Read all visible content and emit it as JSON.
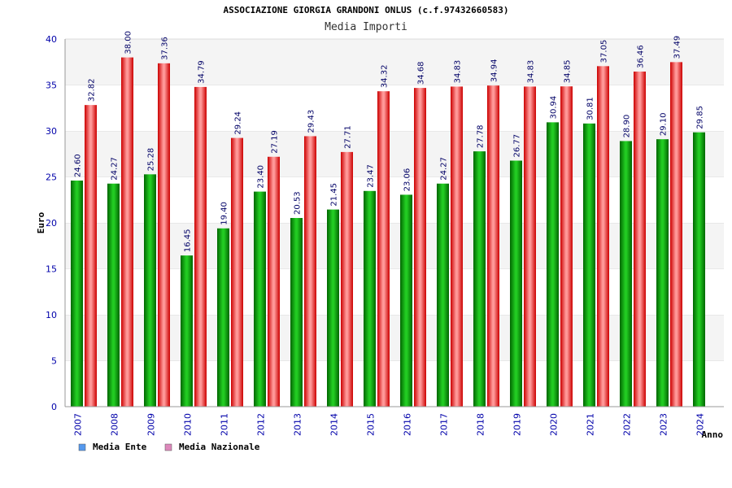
{
  "chart_data": {
    "type": "bar",
    "title": "ASSOCIAZIONE GIORGIA GRANDONI ONLUS (c.f.97432660583)",
    "subtitle": "Media Importi",
    "xlabel": "Anno",
    "ylabel": "Euro",
    "ylim": [
      0,
      40
    ],
    "yticks": [
      "0",
      "5",
      "10",
      "15",
      "20",
      "25",
      "30",
      "35",
      "40"
    ],
    "categories": [
      "2007",
      "2008",
      "2009",
      "2010",
      "2011",
      "2012",
      "2013",
      "2014",
      "2015",
      "2016",
      "2017",
      "2018",
      "2019",
      "2020",
      "2021",
      "2022",
      "2023",
      "2024"
    ],
    "series": [
      {
        "name": "Media Ente",
        "color": "#22aa22",
        "legend_color": "#5599ee",
        "values": [
          24.6,
          24.27,
          25.28,
          16.45,
          19.4,
          23.4,
          20.53,
          21.45,
          23.47,
          23.06,
          24.27,
          27.78,
          26.77,
          30.94,
          30.81,
          28.9,
          29.1,
          29.85
        ],
        "labels": [
          "24.60",
          "24.27",
          "25.28",
          "16.45",
          "19.40",
          "23.40",
          "20.53",
          "21.45",
          "23.47",
          "23.06",
          "24.27",
          "27.78",
          "26.77",
          "30.94",
          "30.81",
          "28.90",
          "29.10",
          "29.85"
        ]
      },
      {
        "name": "Media Nazionale",
        "color": "#ee2222",
        "legend_color": "#dd88bb",
        "values": [
          32.82,
          38.0,
          37.36,
          34.79,
          29.24,
          27.19,
          29.43,
          27.71,
          34.32,
          34.68,
          34.83,
          34.94,
          34.83,
          34.85,
          37.05,
          36.46,
          37.49,
          null
        ],
        "labels": [
          "32.82",
          "38.00",
          "37.36",
          "34.79",
          "29.24",
          "27.19",
          "29.43",
          "27.71",
          "34.32",
          "34.68",
          "34.83",
          "34.94",
          "34.83",
          "34.85",
          "37.05",
          "36.46",
          "37.49",
          null
        ]
      }
    ],
    "grid": true,
    "legend_position": "bottom-left"
  }
}
